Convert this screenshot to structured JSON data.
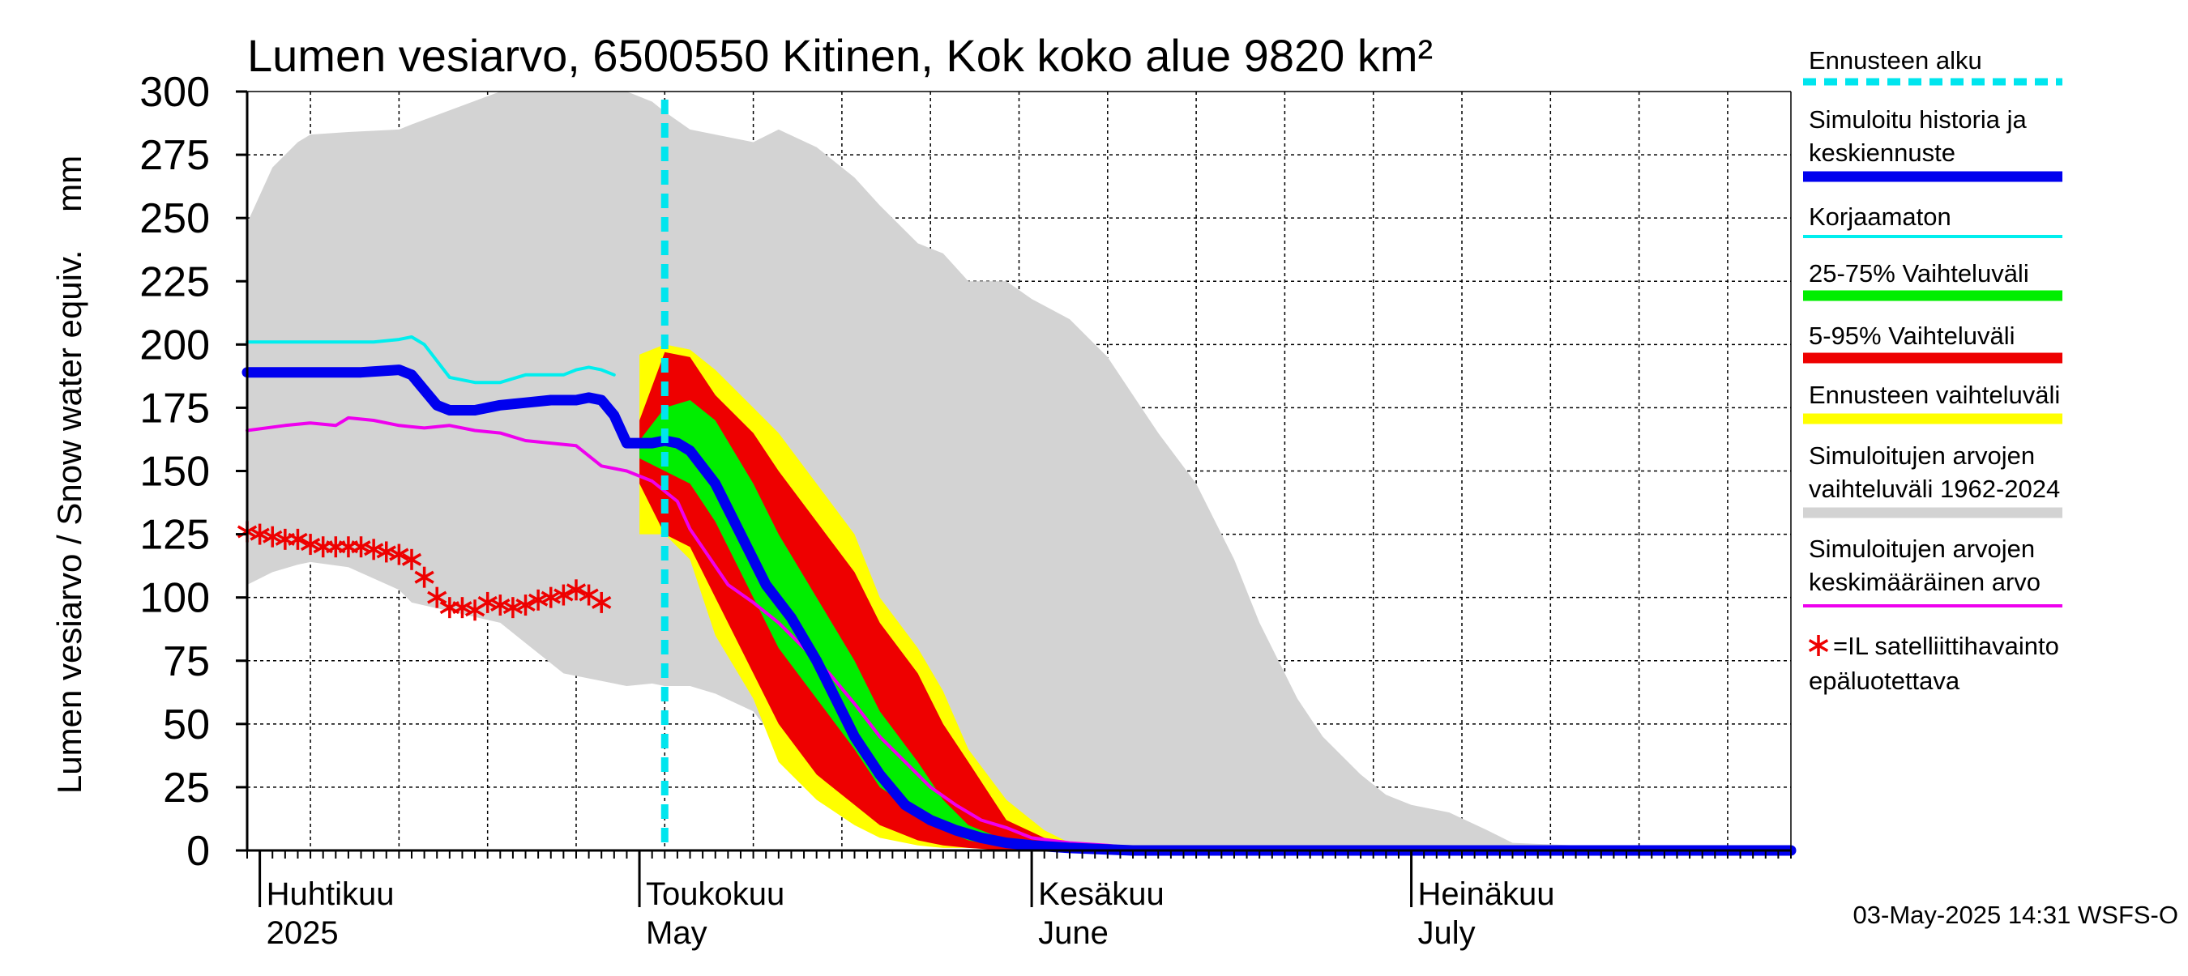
{
  "chart_data": {
    "type": "area",
    "title": "Lumen vesiarvo, 6500550 Kitinen, Kok koko alue 9820 km²",
    "ylabel": "Lumen vesiarvo / Snow water equiv.    mm",
    "ylim": [
      0,
      300
    ],
    "yticks": [
      0,
      25,
      50,
      75,
      100,
      125,
      150,
      175,
      200,
      225,
      250,
      275,
      300
    ],
    "x_domain": [
      "2025-03-31",
      "2025-07-31"
    ],
    "month_labels": [
      {
        "fi": "Huhtikuu",
        "en": "2025",
        "date": "2025-04-01"
      },
      {
        "fi": "Toukokuu",
        "en": "May",
        "date": "2025-05-01"
      },
      {
        "fi": "Kesäkuu",
        "en": "June",
        "date": "2025-06-01"
      },
      {
        "fi": "Heinäkuu",
        "en": "July",
        "date": "2025-07-01"
      }
    ],
    "forecast_start": "2025-05-03",
    "timestamp": "03-May-2025 14:31 WSFS-O",
    "colors": {
      "forecast_start": "#00e5ee",
      "simulated": "#0000ee",
      "uncorrected": "#00eeee",
      "p25_75": "#00ee00",
      "p5_95": "#ee0000",
      "forecast_range": "#ffff00",
      "hist_range": "#d3d3d3",
      "hist_mean": "#ee00ee",
      "satellite": "#ee0000"
    },
    "series": [
      {
        "name": "hist_range",
        "type": "band",
        "x": [
          0,
          2,
          4,
          5,
          8,
          12,
          13,
          20,
          25,
          30,
          32,
          33,
          35,
          37,
          40,
          42,
          45,
          48,
          50,
          53,
          55,
          57,
          60,
          62,
          65,
          68,
          70,
          72,
          75,
          78,
          80,
          83,
          85,
          88,
          90,
          92,
          95,
          98,
          100,
          105,
          110,
          115,
          120,
          122
        ],
        "upper": [
          248,
          270,
          280,
          283,
          284,
          285,
          287,
          300,
          300,
          300,
          296,
          292,
          285,
          283,
          280,
          285,
          278,
          266,
          255,
          240,
          236,
          225,
          225,
          218,
          210,
          195,
          180,
          165,
          145,
          115,
          90,
          60,
          45,
          30,
          22,
          18,
          15,
          8,
          3,
          2,
          1,
          1,
          1,
          1
        ],
        "lower": [
          105,
          110,
          113,
          114,
          112,
          103,
          98,
          90,
          70,
          65,
          66,
          65,
          65,
          62,
          55,
          42,
          30,
          15,
          8,
          5,
          3,
          2,
          1,
          1,
          0,
          0,
          0,
          0,
          0,
          0,
          0,
          0,
          0,
          0,
          0,
          0,
          0,
          0,
          0,
          0,
          0,
          0,
          0,
          0
        ]
      },
      {
        "name": "forecast_range",
        "type": "band",
        "x": [
          31,
          33,
          35,
          37,
          40,
          42,
          45,
          48,
          50,
          53,
          55,
          57,
          60,
          63,
          65,
          68,
          70
        ],
        "upper": [
          196,
          200,
          198,
          190,
          175,
          165,
          145,
          125,
          100,
          80,
          63,
          40,
          20,
          8,
          3,
          1,
          1
        ],
        "lower": [
          125,
          125,
          115,
          85,
          60,
          35,
          20,
          10,
          5,
          2,
          1,
          1,
          0,
          0,
          0,
          0,
          0
        ]
      },
      {
        "name": "p5_95",
        "type": "band",
        "x": [
          31,
          33,
          35,
          37,
          40,
          42,
          45,
          48,
          50,
          53,
          55,
          57,
          60,
          63,
          65,
          68,
          70
        ],
        "upper": [
          170,
          197,
          195,
          180,
          165,
          150,
          130,
          110,
          90,
          70,
          50,
          35,
          12,
          5,
          2,
          1,
          1
        ],
        "lower": [
          145,
          125,
          120,
          100,
          70,
          50,
          30,
          18,
          10,
          4,
          2,
          1,
          0,
          0,
          0,
          0,
          0
        ]
      },
      {
        "name": "p25_75",
        "type": "band",
        "x": [
          31,
          33,
          35,
          37,
          40,
          42,
          45,
          48,
          50,
          53,
          55,
          57,
          60,
          63,
          65,
          68,
          70
        ],
        "upper": [
          162,
          175,
          178,
          170,
          145,
          125,
          100,
          75,
          55,
          35,
          20,
          10,
          4,
          2,
          1,
          1,
          1
        ],
        "lower": [
          155,
          150,
          145,
          130,
          100,
          80,
          60,
          40,
          25,
          15,
          8,
          4,
          1,
          0,
          0,
          0,
          0
        ]
      },
      {
        "name": "hist_mean",
        "type": "line",
        "x": [
          0,
          3,
          5,
          7,
          8,
          10,
          12,
          14,
          16,
          18,
          20,
          22,
          24,
          26,
          28,
          30,
          32,
          34,
          35,
          38,
          40,
          42,
          44,
          46,
          48,
          50,
          52,
          54,
          56,
          58,
          60,
          62,
          65,
          68,
          70,
          72,
          75,
          80,
          90,
          100,
          110,
          122
        ],
        "y": [
          166,
          168,
          169,
          168,
          171,
          170,
          168,
          167,
          168,
          166,
          165,
          162,
          161,
          160,
          152,
          150,
          146,
          138,
          127,
          105,
          98,
          90,
          80,
          70,
          58,
          45,
          35,
          25,
          18,
          12,
          9,
          5,
          3,
          2,
          1,
          1,
          1,
          1,
          1,
          1,
          1,
          1
        ]
      },
      {
        "name": "uncorrected",
        "type": "line",
        "x": [
          0,
          5,
          10,
          12,
          13,
          14,
          16,
          18,
          20,
          22,
          25,
          26,
          27,
          28,
          29
        ],
        "y": [
          201,
          201,
          201,
          202,
          203,
          200,
          187,
          185,
          185,
          188,
          188,
          190,
          191,
          190,
          188
        ]
      },
      {
        "name": "simulated",
        "type": "line",
        "x": [
          0,
          3,
          6,
          9,
          12,
          13,
          14,
          15,
          16,
          17,
          18,
          20,
          22,
          24,
          26,
          27,
          28,
          29,
          30,
          31,
          32,
          33,
          34,
          35,
          37,
          39,
          41,
          43,
          45,
          47,
          48,
          50,
          52,
          54,
          56,
          58,
          60,
          62,
          65,
          70,
          80,
          90,
          100,
          110,
          122
        ],
        "y": [
          189,
          189,
          189,
          189,
          190,
          188,
          182,
          176,
          174,
          174,
          174,
          176,
          177,
          178,
          178,
          179,
          178,
          172,
          161,
          161,
          161,
          162,
          161,
          158,
          145,
          125,
          105,
          92,
          75,
          55,
          45,
          30,
          18,
          12,
          8,
          5,
          3,
          2,
          1,
          0,
          0,
          0,
          0,
          0,
          0
        ]
      },
      {
        "name": "satellite",
        "type": "scatter",
        "x": [
          0,
          1,
          2,
          3,
          4,
          5,
          6,
          7,
          8,
          9,
          10,
          11,
          12,
          13,
          14,
          15,
          16,
          17,
          18,
          19,
          20,
          21,
          22,
          23,
          24,
          25,
          26,
          27,
          28
        ],
        "y": [
          126,
          125,
          124,
          123,
          123,
          121,
          120,
          120,
          120,
          120,
          119,
          118,
          117,
          115,
          108,
          100,
          96,
          96,
          95,
          98,
          97,
          96,
          97,
          99,
          100,
          101,
          103,
          101,
          98
        ]
      }
    ],
    "legend": [
      {
        "key": "forecast_start",
        "style": "dash",
        "lines": [
          "Ennusteen alku"
        ]
      },
      {
        "key": "simulated",
        "style": "thick",
        "lines": [
          "Simuloitu historia ja",
          "keskiennuste"
        ]
      },
      {
        "key": "uncorrected",
        "style": "thin",
        "lines": [
          "Korjaamaton"
        ]
      },
      {
        "key": "p25_75",
        "style": "medium",
        "lines": [
          "25-75% Vaihteluväli"
        ]
      },
      {
        "key": "p5_95",
        "style": "medium",
        "lines": [
          "5-95% Vaihteluväli"
        ]
      },
      {
        "key": "forecast_range",
        "style": "medium",
        "lines": [
          "Ennusteen vaihteluväli"
        ]
      },
      {
        "key": "hist_range",
        "style": "medium",
        "lines": [
          "Simuloitujen arvojen",
          "vaihteluväli 1962-2024"
        ]
      },
      {
        "key": "hist_mean",
        "style": "thin",
        "lines": [
          "Simuloitujen arvojen",
          "keskimääräinen arvo"
        ]
      },
      {
        "key": "satellite",
        "style": "star",
        "lines": [
          "=IL satelliittihavainto",
          "epäluotettava"
        ]
      }
    ]
  }
}
